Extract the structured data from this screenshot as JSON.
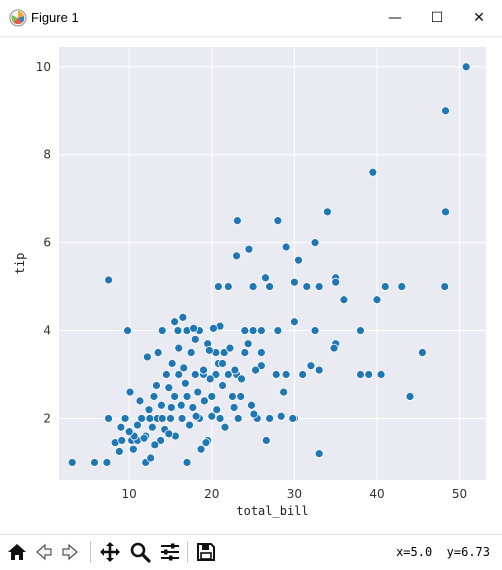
{
  "window": {
    "title": "Figure 1",
    "controls": {
      "minimize": "—",
      "maximize": "☐",
      "close": "✕"
    }
  },
  "toolbar": {
    "buttons": [
      "home-icon",
      "back-icon",
      "forward-icon",
      "pan-icon",
      "zoom-icon",
      "configure-subplots-icon",
      "save-icon"
    ],
    "coords": "x=5.0  y=6.73"
  },
  "colors": {
    "plot_bg": "#EAEAF2",
    "grid": "#FFFFFF",
    "marker": "#1F77B4",
    "marker_edge": "#FFFFFF"
  },
  "chart_data": {
    "type": "scatter",
    "title": "",
    "xlabel": "total_bill",
    "ylabel": "tip",
    "xlim": [
      1.5,
      53.2
    ],
    "ylim": [
      0.6,
      10.45
    ],
    "xticks": [
      10,
      20,
      30,
      40,
      50
    ],
    "yticks": [
      2,
      4,
      6,
      8,
      10
    ],
    "grid": true,
    "legend": "none",
    "points": [
      [
        3.1,
        1.0
      ],
      [
        5.8,
        1.0
      ],
      [
        7.3,
        1.0
      ],
      [
        17.0,
        1.0
      ],
      [
        12.0,
        1.0
      ],
      [
        12.6,
        1.1
      ],
      [
        7.5,
        5.15
      ],
      [
        9.8,
        4.0
      ],
      [
        7.5,
        2.0
      ],
      [
        9.0,
        1.8
      ],
      [
        9.5,
        2.0
      ],
      [
        10.3,
        1.5
      ],
      [
        10.5,
        1.3
      ],
      [
        11.0,
        1.5
      ],
      [
        11.5,
        2.0
      ],
      [
        12.0,
        1.6
      ],
      [
        12.5,
        2.0
      ],
      [
        13.0,
        2.5
      ],
      [
        13.4,
        2.0
      ],
      [
        13.8,
        1.5
      ],
      [
        14.0,
        2.0
      ],
      [
        14.5,
        3.0
      ],
      [
        15.0,
        2.0
      ],
      [
        15.5,
        2.5
      ],
      [
        16.0,
        3.0
      ],
      [
        16.4,
        2.0
      ],
      [
        17.0,
        2.5
      ],
      [
        17.5,
        3.5
      ],
      [
        18.0,
        3.0
      ],
      [
        18.5,
        2.0
      ],
      [
        19.0,
        3.0
      ],
      [
        19.5,
        1.5
      ],
      [
        20.0,
        2.5
      ],
      [
        20.5,
        3.0
      ],
      [
        21.0,
        2.0
      ],
      [
        21.5,
        3.5
      ],
      [
        22.0,
        3.0
      ],
      [
        22.5,
        2.5
      ],
      [
        23.0,
        3.0
      ],
      [
        23.5,
        2.5
      ],
      [
        24.0,
        3.5
      ],
      [
        25.0,
        4.0
      ],
      [
        25.5,
        2.0
      ],
      [
        26.0,
        3.5
      ],
      [
        27.0,
        2.0
      ],
      [
        28.0,
        4.0
      ],
      [
        29.0,
        3.0
      ],
      [
        30.0,
        2.0
      ],
      [
        30.5,
        5.6
      ],
      [
        31.0,
        3.0
      ],
      [
        32.0,
        3.2
      ],
      [
        33.0,
        3.1
      ],
      [
        33.0,
        1.2
      ],
      [
        34.0,
        6.7
      ],
      [
        35.0,
        5.2
      ],
      [
        35.0,
        3.7
      ],
      [
        36.0,
        4.7
      ],
      [
        38.0,
        4.0
      ],
      [
        38.0,
        3.0
      ],
      [
        39.0,
        3.0
      ],
      [
        40.5,
        3.0
      ],
      [
        40.0,
        4.7
      ],
      [
        41.0,
        5.0
      ],
      [
        43.0,
        5.0
      ],
      [
        44.0,
        2.5
      ],
      [
        45.5,
        3.5
      ],
      [
        48.2,
        5.0
      ],
      [
        48.3,
        6.7
      ],
      [
        48.3,
        9.0
      ],
      [
        50.8,
        10.0
      ],
      [
        39.5,
        7.6
      ],
      [
        23.1,
        6.5
      ],
      [
        28.0,
        6.5
      ],
      [
        29.0,
        5.9
      ],
      [
        32.5,
        6.0
      ],
      [
        30.0,
        5.1
      ],
      [
        26.5,
        5.2
      ],
      [
        22.0,
        5.0
      ],
      [
        20.8,
        5.0
      ],
      [
        25.0,
        5.0
      ],
      [
        27.0,
        5.0
      ],
      [
        31.5,
        5.0
      ],
      [
        33.0,
        5.0
      ],
      [
        23.0,
        5.7
      ],
      [
        24.5,
        5.85
      ],
      [
        32.5,
        4.0
      ],
      [
        30.0,
        4.2
      ],
      [
        35.0,
        5.1
      ],
      [
        34.8,
        3.6
      ],
      [
        26.0,
        3.2
      ],
      [
        21.0,
        4.1
      ],
      [
        14.0,
        4.0
      ],
      [
        15.5,
        4.2
      ],
      [
        17.0,
        4.0
      ],
      [
        18.5,
        4.0
      ],
      [
        16.5,
        4.3
      ],
      [
        19.5,
        3.7
      ],
      [
        12.2,
        3.4
      ],
      [
        13.5,
        3.5
      ],
      [
        16.0,
        3.6
      ],
      [
        18.0,
        3.8
      ],
      [
        20.5,
        3.5
      ],
      [
        22.2,
        3.6
      ],
      [
        24.4,
        3.7
      ],
      [
        13.3,
        2.75
      ],
      [
        14.8,
        2.7
      ],
      [
        16.8,
        2.8
      ],
      [
        18.3,
        2.6
      ],
      [
        19.8,
        2.9
      ],
      [
        21.3,
        2.75
      ],
      [
        23.6,
        2.9
      ],
      [
        10.1,
        2.6
      ],
      [
        11.3,
        2.4
      ],
      [
        12.4,
        2.2
      ],
      [
        13.9,
        2.3
      ],
      [
        15.1,
        2.25
      ],
      [
        16.3,
        2.3
      ],
      [
        17.7,
        2.25
      ],
      [
        19.1,
        2.4
      ],
      [
        20.6,
        2.2
      ],
      [
        22.7,
        2.25
      ],
      [
        24.8,
        2.3
      ],
      [
        8.3,
        1.45
      ],
      [
        9.1,
        1.5
      ],
      [
        10.6,
        1.6
      ],
      [
        11.8,
        1.55
      ],
      [
        13.1,
        1.4
      ],
      [
        14.3,
        1.75
      ],
      [
        15.6,
        1.6
      ],
      [
        18.7,
        1.3
      ],
      [
        19.3,
        1.45
      ],
      [
        26.6,
        1.5
      ],
      [
        8.8,
        1.25
      ],
      [
        10.0,
        1.7
      ],
      [
        11.0,
        1.85
      ],
      [
        12.8,
        1.8
      ],
      [
        14.8,
        1.65
      ],
      [
        17.3,
        1.85
      ],
      [
        21.6,
        1.8
      ],
      [
        15.2,
        3.25
      ],
      [
        16.6,
        3.15
      ],
      [
        19.0,
        3.1
      ],
      [
        20.8,
        3.25
      ],
      [
        22.8,
        3.1
      ],
      [
        25.3,
        3.1
      ],
      [
        27.8,
        3.0
      ],
      [
        28.7,
        2.6
      ],
      [
        29.8,
        2.0
      ],
      [
        28.4,
        2.05
      ],
      [
        25.1,
        2.1
      ],
      [
        23.2,
        2.0
      ],
      [
        20.0,
        2.05
      ],
      [
        18.1,
        2.05
      ],
      [
        26.0,
        4.0
      ],
      [
        24.0,
        4.0
      ],
      [
        20.2,
        4.05
      ],
      [
        17.8,
        4.05
      ],
      [
        15.9,
        4.0
      ],
      [
        21.3,
        3.25
      ],
      [
        19.7,
        3.55
      ]
    ]
  }
}
